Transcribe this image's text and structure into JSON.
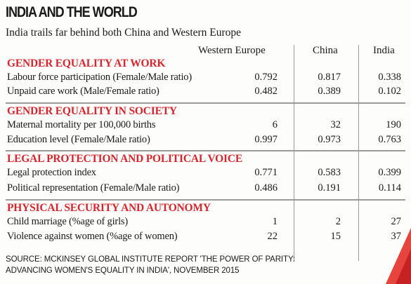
{
  "title": "INDIA AND THE WORLD",
  "subtitle": "India trails far behind both China and Western Europe",
  "columns": {
    "western_europe": "Western Europe",
    "china": "China",
    "india": "India"
  },
  "sections": [
    {
      "heading": "GENDER EQUALITY AT WORK",
      "rows": [
        {
          "label": "Labour force participation (Female/Male ratio)",
          "we": "0.792",
          "china": "0.817",
          "india": "0.338"
        },
        {
          "label": "Unpaid care work (Male/Female ratio)",
          "we": "0.482",
          "china": "0.389",
          "india": "0.102"
        }
      ]
    },
    {
      "heading": "GENDER EQUALITY IN SOCIETY",
      "rows": [
        {
          "label": "Maternal mortality per 100,000 births",
          "we": "6",
          "china": "32",
          "india": "190"
        },
        {
          "label": "Education level (Female/Male ratio)",
          "we": "0.997",
          "china": "0.973",
          "india": "0.763"
        }
      ]
    },
    {
      "heading": "LEGAL PROTECTION AND POLITICAL VOICE",
      "rows": [
        {
          "label": "Legal protection index",
          "we": "0.771",
          "china": "0.583",
          "india": "0.399"
        },
        {
          "label": "Political representation (Female/Male ratio)",
          "we": "0.486",
          "china": "0.191",
          "india": "0.114"
        }
      ]
    },
    {
      "heading": "PHYSICAL SECURITY AND AUTONOMY",
      "rows": [
        {
          "label": "Child marriage (%age of girls)",
          "we": "1",
          "china": "2",
          "india": "27"
        },
        {
          "label": "Violence against women (%age of women)",
          "we": "22",
          "china": "15",
          "india": "37"
        }
      ]
    }
  ],
  "source_line1": "SOURCE: MCKINSEY GLOBAL INSTITUTE REPORT 'THE POWER OF PARITY:",
  "source_line2": "ADVANCING WOMEN'S EQUALITY IN INDIA', NOVEMBER 2015",
  "colors": {
    "section_heading": "#d7252e",
    "rule": "#9a9a9a",
    "accent": "#e2231a"
  }
}
